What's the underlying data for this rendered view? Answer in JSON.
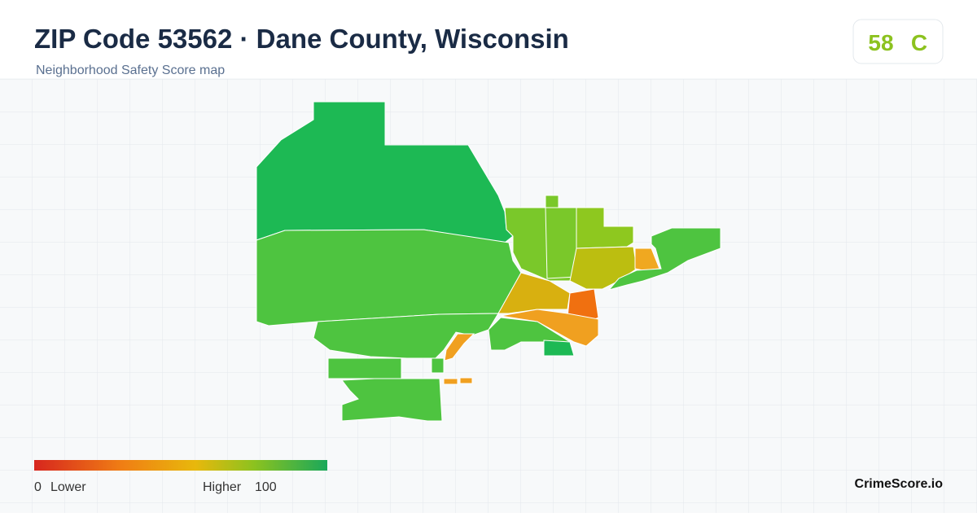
{
  "header": {
    "title": "ZIP Code 53562 · Dane County, Wisconsin",
    "subtitle": "Neighborhood Safety Score map"
  },
  "score": {
    "value": "58",
    "grade": "C"
  },
  "legend": {
    "min": "0",
    "min_label": "Lower",
    "max_label": "Higher",
    "max": "100"
  },
  "brand": "CrimeScore.io"
}
